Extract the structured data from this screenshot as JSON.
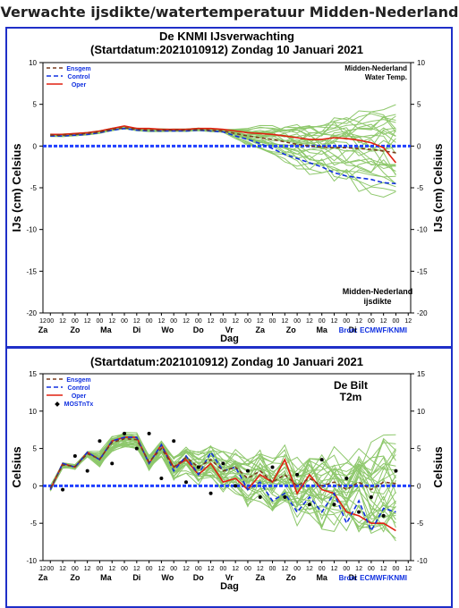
{
  "page_title": "Verwachte ijsdikte/watertemperatuur Midden-Nederland",
  "chart_data": [
    {
      "type": "line",
      "title": "De KNMI IJsverwachting",
      "subtitle": "(Startdatum:2021010912)  Zondag 10 Januari 2021",
      "ylabel_left": "IJs (cm)  Celsius",
      "ylabel_right": "IJs (cm)  Celsius",
      "xlabel": "Dag",
      "ylim": [
        -20,
        10
      ],
      "yticks": [
        10,
        5,
        0,
        -5,
        -10,
        -15,
        -20
      ],
      "xticks_hours": [
        "12",
        "00",
        "12",
        "00",
        "12",
        "00",
        "12",
        "00",
        "12",
        "00",
        "12",
        "00",
        "12",
        "00",
        "12",
        "00",
        "12",
        "00",
        "12",
        "00",
        "12",
        "00",
        "12",
        "00",
        "12",
        "00",
        "12",
        "00",
        "12",
        "00",
        "12"
      ],
      "xticks_days": [
        "Za",
        "Zo",
        "Ma",
        "Di",
        "Wo",
        "Do",
        "Vr",
        "Za",
        "Zo",
        "Ma",
        "Di"
      ],
      "annotations": {
        "top_right": [
          "Midden-Nederland",
          "Water Temp."
        ],
        "bottom_right": [
          "Midden-Nederland",
          "ijsdikte"
        ],
        "source": "Bron: ECMWF/KNMI"
      },
      "legend": [
        "Ensgem",
        "Control",
        "Oper"
      ],
      "legend_position": "top-left",
      "colors": {
        "ensemble": "#8ec86c",
        "ensgem": "#7a3b1e",
        "control": "#1030e0",
        "oper": "#e02010",
        "ice": "#2040ff"
      },
      "x": [
        0,
        0.5,
        1,
        1.5,
        2,
        2.5,
        3,
        3.5,
        4,
        4.5,
        5,
        5.5,
        6,
        6.5,
        7,
        7.5,
        8,
        8.5,
        9,
        9.5,
        10,
        10.5,
        11,
        11.5,
        12,
        12.5,
        13,
        13.5,
        14
      ],
      "series": [
        {
          "name": "Oper",
          "values": [
            1.4,
            1.4,
            1.5,
            1.6,
            1.8,
            2.1,
            2.4,
            2.1,
            2.1,
            2.0,
            2.0,
            2.0,
            2.1,
            2.1,
            2.0,
            1.8,
            1.6,
            1.5,
            1.4,
            1.2,
            1.0,
            0.8,
            0.8,
            1.0,
            0.9,
            0.7,
            0.4,
            -0.2,
            -2.0
          ]
        },
        {
          "name": "Control",
          "values": [
            1.2,
            1.2,
            1.3,
            1.4,
            1.6,
            1.9,
            2.1,
            1.9,
            1.8,
            1.8,
            1.8,
            1.8,
            1.9,
            1.8,
            1.7,
            1.2,
            0.8,
            0.3,
            -0.3,
            -1.0,
            -1.5,
            -2.0,
            -2.5,
            -3.2,
            -3.6,
            -3.8,
            -4.0,
            -4.4,
            -4.5
          ]
        },
        {
          "name": "Ensgem",
          "values": [
            1.3,
            1.3,
            1.4,
            1.5,
            1.7,
            2.0,
            2.2,
            2.0,
            1.9,
            1.9,
            1.9,
            1.9,
            2.0,
            1.9,
            1.8,
            1.5,
            1.2,
            1.0,
            0.8,
            0.5,
            0.2,
            0.0,
            -0.1,
            -0.2,
            -0.2,
            -0.3,
            -0.4,
            -0.6,
            -0.8
          ]
        }
      ],
      "ice_thickness": [
        0,
        0,
        0,
        0,
        0,
        0,
        0,
        0,
        0,
        0,
        0,
        0,
        0,
        0,
        0,
        0,
        0,
        0,
        0,
        0,
        0,
        0,
        0,
        0,
        0,
        0,
        0,
        0,
        0
      ],
      "ensemble_end_range": [
        -6,
        4.5
      ]
    },
    {
      "type": "line",
      "title": "",
      "subtitle": "(Startdatum:2021010912)  Zondag 10 Januari 2021",
      "ylabel_left": "Celsius",
      "ylabel_right": "Celsius",
      "xlabel": "Dag",
      "ylim": [
        -10,
        15
      ],
      "yticks": [
        15,
        10,
        5,
        0,
        -5,
        -10
      ],
      "xticks_hours": [
        "12",
        "00",
        "12",
        "00",
        "12",
        "00",
        "12",
        "00",
        "12",
        "00",
        "12",
        "00",
        "12",
        "00",
        "12",
        "00",
        "12",
        "00",
        "12",
        "00",
        "12",
        "00",
        "12",
        "00",
        "12",
        "00",
        "12",
        "00",
        "12",
        "00",
        "12"
      ],
      "xticks_days": [
        "Za",
        "Zo",
        "Ma",
        "Di",
        "Wo",
        "Do",
        "Vr",
        "Za",
        "Zo",
        "Ma",
        "Di"
      ],
      "annotations": {
        "top_right": [
          "De Bilt",
          "T2m"
        ],
        "source": "Bron: ECMWF/KNMI"
      },
      "legend": [
        "Ensgem",
        "Control",
        "Oper",
        "MOSTnTx"
      ],
      "legend_position": "top-left",
      "colors": {
        "ensemble": "#8ec86c",
        "ensgem": "#7a3b1e",
        "control": "#1030e0",
        "oper": "#e02010",
        "zero": "#2040ff"
      },
      "x": [
        0,
        0.5,
        1,
        1.5,
        2,
        2.5,
        3,
        3.5,
        4,
        4.5,
        5,
        5.5,
        6,
        6.5,
        7,
        7.5,
        8,
        8.5,
        9,
        9.5,
        10,
        10.5,
        11,
        11.5,
        12,
        12.5,
        13,
        13.5,
        14
      ],
      "series": [
        {
          "name": "Oper",
          "values": [
            -0.5,
            3.0,
            2.5,
            4.5,
            3.5,
            6.0,
            6.5,
            6.5,
            3.0,
            5.5,
            2.5,
            3.5,
            1.5,
            3.0,
            0.5,
            1.0,
            -0.5,
            1.5,
            0.5,
            3.5,
            -1.0,
            1.5,
            -0.5,
            -1.0,
            -3.5,
            -4.0,
            -5.0,
            -5.0,
            -6.0
          ]
        },
        {
          "name": "Control",
          "values": [
            -0.5,
            3.0,
            2.5,
            4.5,
            3.5,
            6.0,
            6.5,
            6.5,
            3.0,
            5.5,
            2.0,
            4.0,
            1.5,
            4.5,
            2.0,
            2.5,
            -0.5,
            0.5,
            -2.0,
            -1.0,
            -3.5,
            -1.5,
            -3.5,
            -1.0,
            -5.0,
            -2.0,
            -6.0,
            -3.0,
            -3.5
          ]
        },
        {
          "name": "Ensgem",
          "values": [
            -0.3,
            2.8,
            2.6,
            4.3,
            3.6,
            5.8,
            6.3,
            6.2,
            3.2,
            5.0,
            2.5,
            3.8,
            2.5,
            3.5,
            2.0,
            2.5,
            1.0,
            2.0,
            0.5,
            1.5,
            0.0,
            1.0,
            0.0,
            0.5,
            -0.5,
            0.5,
            -0.5,
            0.5,
            0.3
          ]
        },
        {
          "name": "MOSTnTx",
          "type": "scatter",
          "x": [
            0.5,
            1,
            1.5,
            2,
            2.5,
            3,
            3.5,
            4,
            4.5,
            5,
            5.5,
            6,
            6.5,
            7,
            7.5,
            8,
            8.5,
            9,
            9.5,
            10,
            10.5,
            11,
            11.5,
            12,
            12.5,
            13,
            13.5,
            14
          ],
          "values": [
            -0.5,
            4.0,
            2.0,
            6.0,
            3.0,
            7.0,
            5.0,
            7.0,
            1.0,
            6.0,
            0.5,
            2.5,
            -1.0,
            3.0,
            0.0,
            2.0,
            -1.5,
            2.5,
            -1.5,
            1.5,
            -2.5,
            3.5,
            -2.5,
            1.0,
            -3.5,
            -1.5,
            -4.0,
            2.0
          ]
        }
      ]
    }
  ]
}
